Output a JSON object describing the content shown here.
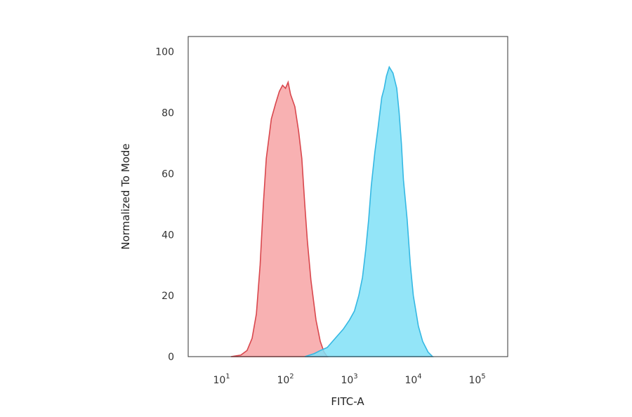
{
  "chart_data": {
    "type": "area",
    "xlabel": "FITC-A",
    "ylabel": "Normalized To Mode",
    "x_scale": "log",
    "xlim": [
      3,
      300000
    ],
    "ylim": [
      0,
      105
    ],
    "x_ticks": [
      {
        "value": 10,
        "base": "10",
        "exp": "1"
      },
      {
        "value": 100,
        "base": "10",
        "exp": "2"
      },
      {
        "value": 1000,
        "base": "10",
        "exp": "3"
      },
      {
        "value": 10000,
        "base": "10",
        "exp": "4"
      },
      {
        "value": 100000,
        "base": "10",
        "exp": "5"
      }
    ],
    "y_ticks": [
      {
        "value": 0,
        "label": "0"
      },
      {
        "value": 20,
        "label": "20"
      },
      {
        "value": 40,
        "label": "40"
      },
      {
        "value": 60,
        "label": "60"
      },
      {
        "value": 80,
        "label": "80"
      },
      {
        "value": 100,
        "label": "100"
      }
    ],
    "grid": false,
    "series": [
      {
        "fill": "#f7a3a5",
        "stroke": "#d9474d",
        "points": [
          [
            14,
            0
          ],
          [
            20,
            0.5
          ],
          [
            25,
            2
          ],
          [
            30,
            6
          ],
          [
            35,
            14
          ],
          [
            40,
            30
          ],
          [
            45,
            50
          ],
          [
            50,
            65
          ],
          [
            60,
            78
          ],
          [
            70,
            83
          ],
          [
            80,
            87
          ],
          [
            90,
            89
          ],
          [
            100,
            88
          ],
          [
            110,
            90
          ],
          [
            120,
            86
          ],
          [
            140,
            82
          ],
          [
            160,
            74
          ],
          [
            180,
            65
          ],
          [
            200,
            50
          ],
          [
            220,
            38
          ],
          [
            250,
            25
          ],
          [
            300,
            12
          ],
          [
            350,
            5
          ],
          [
            400,
            1.5
          ],
          [
            450,
            0
          ]
        ]
      },
      {
        "fill": "#80e0f7",
        "stroke": "#35b8e3",
        "points": [
          [
            200,
            0
          ],
          [
            280,
            1
          ],
          [
            350,
            2
          ],
          [
            450,
            3
          ],
          [
            600,
            6
          ],
          [
            800,
            9
          ],
          [
            1000,
            12
          ],
          [
            1200,
            15
          ],
          [
            1400,
            20
          ],
          [
            1600,
            26
          ],
          [
            1800,
            35
          ],
          [
            2000,
            45
          ],
          [
            2200,
            56
          ],
          [
            2500,
            67
          ],
          [
            2800,
            75
          ],
          [
            3200,
            85
          ],
          [
            3500,
            88
          ],
          [
            3800,
            92
          ],
          [
            4200,
            95
          ],
          [
            4800,
            93
          ],
          [
            5500,
            88
          ],
          [
            6000,
            80
          ],
          [
            6500,
            70
          ],
          [
            7000,
            58
          ],
          [
            8000,
            45
          ],
          [
            9000,
            30
          ],
          [
            10000,
            20
          ],
          [
            12000,
            10
          ],
          [
            14000,
            5
          ],
          [
            17000,
            1.5
          ],
          [
            20000,
            0
          ]
        ]
      }
    ]
  }
}
